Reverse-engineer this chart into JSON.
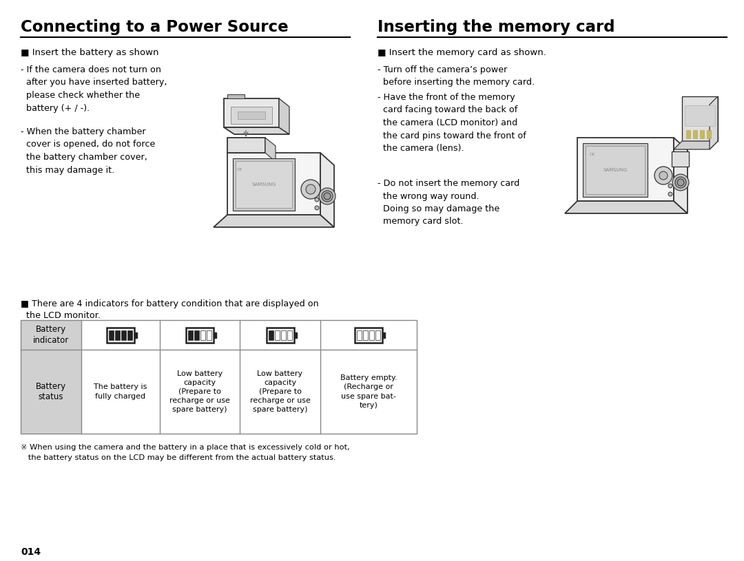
{
  "page_bg": "#ffffff",
  "left_title": "Connecting to a Power Source",
  "right_title": "Inserting the memory card",
  "left_bullet": "■ Insert the battery as shown",
  "left_text1": "- If the camera does not turn on\n  after you have inserted battery,\n  please check whether the\n  battery (+ / -).",
  "left_text2": "- When the battery chamber\n  cover is opened, do not force\n  the battery chamber cover,\n  this may damage it.",
  "right_bullet": "■ Insert the memory card as shown.",
  "right_text1": "- Turn off the camera’s power\n  before inserting the memory card.",
  "right_text2": "- Have the front of the memory\n  card facing toward the back of\n  the camera (LCD monitor) and\n  the card pins toward the front of\n  the camera (lens).",
  "right_text3": "- Do not insert the memory card\n  the wrong way round.\n  Doing so may damage the\n  memory card slot.",
  "battery_intro_line1": "■ There are 4 indicators for battery condition that are displayed on",
  "battery_intro_line2": "  the LCD monitor.",
  "table_header_col0": "Battery\nindicator",
  "table_status_col0": "Battery\nstatus",
  "table_status_col1": "The battery is\nfully charged",
  "table_status_col2": "Low battery\ncapacity\n(Prepare to\nrecharge or use\nspare battery)",
  "table_status_col3": "Low battery\ncapacity\n(Prepare to\nrecharge or use\nspare battery)",
  "table_status_col4": "Battery empty.\n(Recharge or\nuse spare bat-\ntery)",
  "footnote_line1": "※ When using the camera and the battery in a place that is excessively cold or hot,",
  "footnote_line2": "   the battery status on the LCD may be different from the actual battery status.",
  "page_number": "014",
  "table_header_bg": "#d0d0d0",
  "table_border_color": "#888888"
}
